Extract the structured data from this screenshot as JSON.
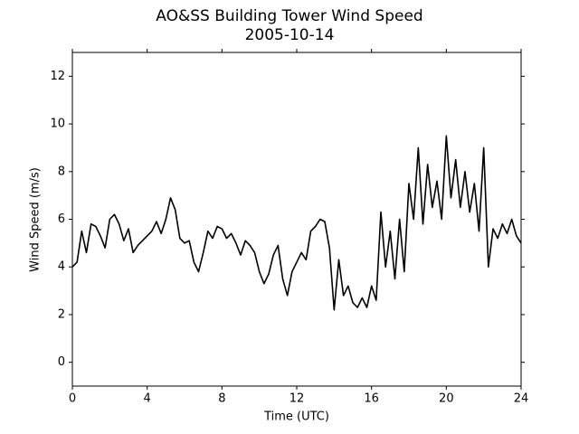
{
  "chart_data": {
    "type": "line",
    "title": "AO&SS Building Tower Wind Speed",
    "subtitle": "2005-10-14",
    "x_label": "Time (UTC)",
    "y_label": "Wind Speed (m/s)",
    "xlim": [
      0,
      24
    ],
    "xticks": [
      0,
      4,
      8,
      12,
      16,
      20,
      24
    ],
    "ylim": [
      -1,
      13
    ],
    "yticks": [
      0,
      2,
      4,
      6,
      8,
      10,
      12
    ],
    "x": [
      0,
      0.25,
      0.5,
      0.75,
      1,
      1.25,
      1.5,
      1.75,
      2,
      2.25,
      2.5,
      2.75,
      3,
      3.25,
      3.5,
      3.75,
      4,
      4.25,
      4.5,
      4.75,
      5,
      5.25,
      5.5,
      5.75,
      6,
      6.25,
      6.5,
      6.75,
      7,
      7.25,
      7.5,
      7.75,
      8,
      8.25,
      8.5,
      8.75,
      9,
      9.25,
      9.5,
      9.75,
      10,
      10.25,
      10.5,
      10.75,
      11,
      11.25,
      11.5,
      11.75,
      12,
      12.25,
      12.5,
      12.75,
      13,
      13.25,
      13.5,
      13.75,
      14,
      14.25,
      14.5,
      14.75,
      15,
      15.25,
      15.5,
      15.75,
      16,
      16.25,
      16.5,
      16.75,
      17,
      17.25,
      17.5,
      17.75,
      18,
      18.25,
      18.5,
      18.75,
      19,
      19.25,
      19.5,
      19.75,
      20,
      20.25,
      20.5,
      20.75,
      21,
      21.25,
      21.5,
      21.75,
      22,
      22.25,
      22.5,
      22.75,
      23,
      23.25,
      23.5,
      23.75,
      24
    ],
    "series": [
      {
        "name": "Wind Speed",
        "color": "#000000",
        "values": [
          4.0,
          4.2,
          5.5,
          4.6,
          5.8,
          5.7,
          5.3,
          4.8,
          6.0,
          6.2,
          5.8,
          5.1,
          5.6,
          4.6,
          4.9,
          5.1,
          5.3,
          5.5,
          5.9,
          5.4,
          6.0,
          6.9,
          6.4,
          5.2,
          5.0,
          5.1,
          4.2,
          3.8,
          4.6,
          5.5,
          5.2,
          5.7,
          5.6,
          5.2,
          5.4,
          5.0,
          4.5,
          5.1,
          4.9,
          4.6,
          3.8,
          3.3,
          3.7,
          4.5,
          4.9,
          3.5,
          2.8,
          3.8,
          4.2,
          4.6,
          4.3,
          5.5,
          5.7,
          6.0,
          5.9,
          4.8,
          2.2,
          4.3,
          2.8,
          3.2,
          2.5,
          2.3,
          2.7,
          2.3,
          3.2,
          2.6,
          6.3,
          4.0,
          5.5,
          3.5,
          6.0,
          3.8,
          7.5,
          6.0,
          9.0,
          5.8,
          8.3,
          6.5,
          7.6,
          6.0,
          9.5,
          6.9,
          8.5,
          6.5,
          8.0,
          6.3,
          7.5,
          5.5,
          9.0,
          4.0,
          5.6,
          5.2,
          5.8,
          5.4,
          6.0,
          5.3,
          5.0
        ]
      }
    ]
  }
}
